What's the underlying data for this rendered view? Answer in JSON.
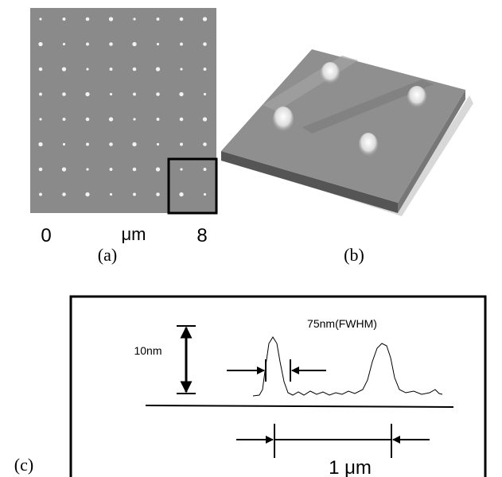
{
  "panel_a": {
    "axis_start": "0",
    "axis_unit": "μm",
    "axis_end": "8",
    "caption": "(a)"
  },
  "panel_b": {
    "caption": "(b)"
  },
  "panel_c": {
    "caption": "(c)",
    "height_label": "10nm",
    "width_label": "75nm(FWHM)",
    "spacing_label": "1 μm"
  }
}
